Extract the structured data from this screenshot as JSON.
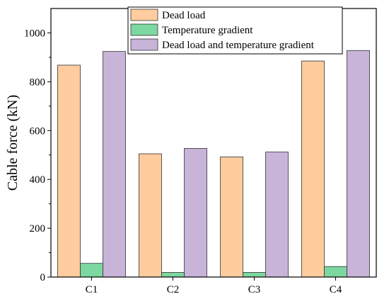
{
  "chart_data": {
    "type": "bar",
    "categories": [
      "C1",
      "C2",
      "C3",
      "C4"
    ],
    "series": [
      {
        "name": "Dead load",
        "values": [
          868,
          505,
          492,
          885
        ],
        "color": "#FECC9E"
      },
      {
        "name": "Temperature gradient",
        "values": [
          56,
          19,
          19,
          43
        ],
        "color": "#7CD7A0"
      },
      {
        "name": "Dead load and temperature gradient",
        "values": [
          924,
          527,
          512,
          928
        ],
        "color": "#C8B3D9"
      }
    ],
    "ylabel": "Cable force (kN)",
    "xlabel": "",
    "ylim": [
      0,
      1100
    ],
    "yticks": [
      0,
      200,
      400,
      600,
      800,
      1000
    ],
    "legend_position": "top",
    "grid": false
  }
}
